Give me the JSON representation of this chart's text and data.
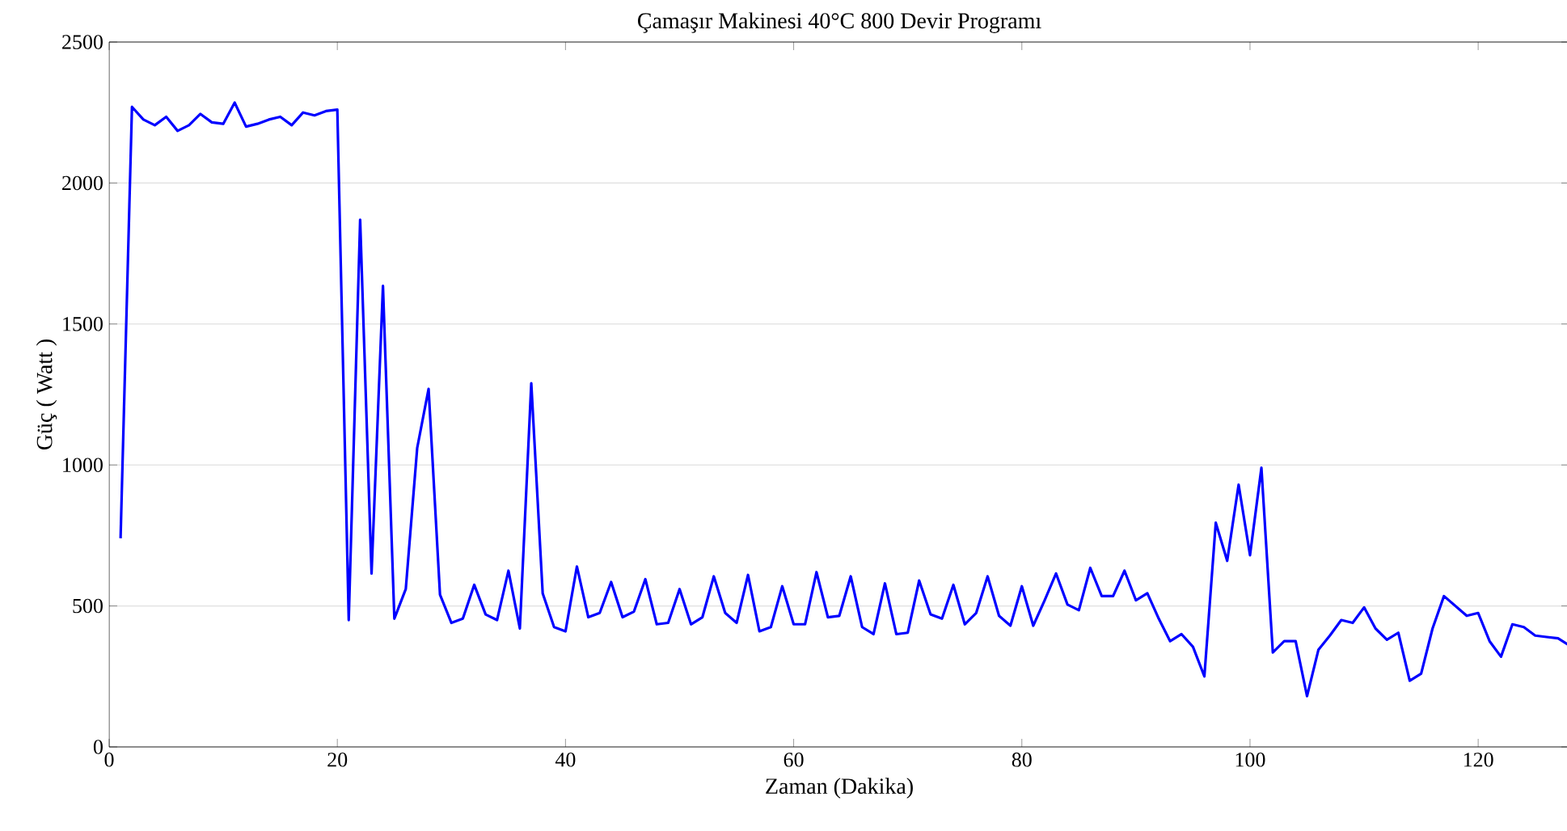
{
  "chart_data": {
    "type": "line",
    "title": "Çamaşır Makinesi 40°C 800 Devir Programı",
    "xlabel": "Zaman (Dakika)",
    "ylabel": "Güç ( Watt )",
    "x": [
      1,
      2,
      3,
      4,
      5,
      6,
      7,
      8,
      9,
      10,
      11,
      12,
      13,
      14,
      15,
      16,
      17,
      18,
      19,
      20,
      21,
      22,
      23,
      24,
      25,
      26,
      27,
      28,
      29,
      30,
      31,
      32,
      33,
      34,
      35,
      36,
      37,
      38,
      39,
      40,
      41,
      42,
      43,
      44,
      45,
      46,
      47,
      48,
      49,
      50,
      51,
      52,
      53,
      54,
      55,
      56,
      57,
      58,
      59,
      60,
      61,
      62,
      63,
      64,
      65,
      66,
      67,
      68,
      69,
      70,
      71,
      72,
      73,
      74,
      75,
      76,
      77,
      78,
      79,
      80,
      81,
      82,
      83,
      84,
      85,
      86,
      87,
      88,
      89,
      90,
      91,
      92,
      93,
      94,
      95,
      96,
      97,
      98,
      99,
      100,
      101,
      102,
      103,
      104,
      105,
      106,
      107,
      108,
      109,
      110,
      111,
      112,
      113,
      114,
      115,
      116,
      117,
      118,
      119,
      120,
      121,
      122,
      123,
      124,
      125,
      126,
      127,
      128
    ],
    "series": [
      {
        "color": "#0000ff",
        "values": [
          740,
          2270,
          2225,
          2205,
          2235,
          2185,
          2205,
          2245,
          2215,
          2210,
          2285,
          2200,
          2210,
          2225,
          2235,
          2205,
          2250,
          2240,
          2255,
          2260,
          450,
          1870,
          615,
          1635,
          455,
          560,
          1060,
          1270,
          540,
          440,
          455,
          575,
          470,
          450,
          625,
          420,
          1290,
          545,
          425,
          410,
          640,
          460,
          475,
          585,
          460,
          480,
          595,
          435,
          440,
          560,
          435,
          460,
          605,
          475,
          440,
          610,
          410,
          425,
          570,
          435,
          435,
          620,
          460,
          465,
          605,
          425,
          400,
          580,
          400,
          405,
          590,
          470,
          455,
          575,
          435,
          475,
          605,
          465,
          430,
          570,
          430,
          520,
          615,
          505,
          485,
          635,
          535,
          535,
          625,
          520,
          545,
          455,
          375,
          400,
          355,
          250,
          795,
          660,
          930,
          680,
          990,
          335,
          375,
          375,
          180,
          345,
          395,
          450,
          440,
          495,
          420,
          380,
          405,
          235,
          260,
          420,
          535,
          500,
          465,
          475,
          375,
          320,
          435,
          425,
          395,
          390,
          385,
          360
        ]
      }
    ],
    "xlim": [
      0,
      128
    ],
    "ylim": [
      0,
      2500
    ],
    "xticks": [
      0,
      20,
      40,
      60,
      80,
      100,
      120
    ],
    "yticks": [
      0,
      500,
      1000,
      1500,
      2000,
      2500
    ],
    "grid": "y",
    "marker": "none",
    "line_style": "solid"
  }
}
